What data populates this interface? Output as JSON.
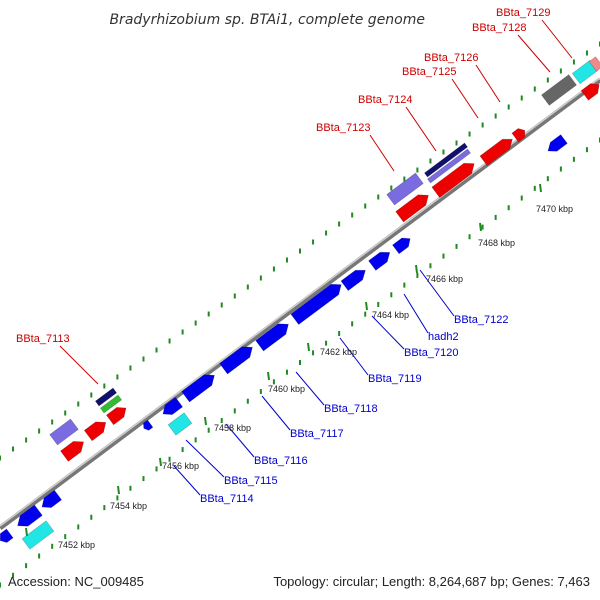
{
  "title": "Bradyrhizobium sp. BTAi1, complete genome",
  "footer": {
    "accession": "Accession: NC_009485",
    "summary": "Topology: circular; Length: 8,264,687 bp; Genes: 7,463"
  },
  "colors": {
    "red": "#ee0000",
    "blue": "#0000ee",
    "cyan": "#22e6e6",
    "purple": "#7b6be0",
    "navy": "#10106e",
    "green": "#33bb33",
    "gray": "#666666",
    "pink": "#f08a8a",
    "backbone": "#999999",
    "tick": "#228822"
  },
  "kbp_ticks": [
    "7452 kbp",
    "7454 kbp",
    "7456 kbp",
    "7458 kbp",
    "7460 kbp",
    "7462 kbp",
    "7464 kbp",
    "7466 kbp",
    "7468 kbp",
    "7470 kbp"
  ],
  "top_labels": [
    "BBta_7113",
    "BBta_7123",
    "BBta_7124",
    "BBta_7125",
    "BBta_7126",
    "BBta_7128",
    "BBta_7129"
  ],
  "bottom_labels": [
    "BBta_7114",
    "BBta_7115",
    "BBta_7116",
    "BBta_7117",
    "BBta_7118",
    "BBta_7119",
    "BBta_7120",
    "hadh2",
    "BBta_7122"
  ]
}
